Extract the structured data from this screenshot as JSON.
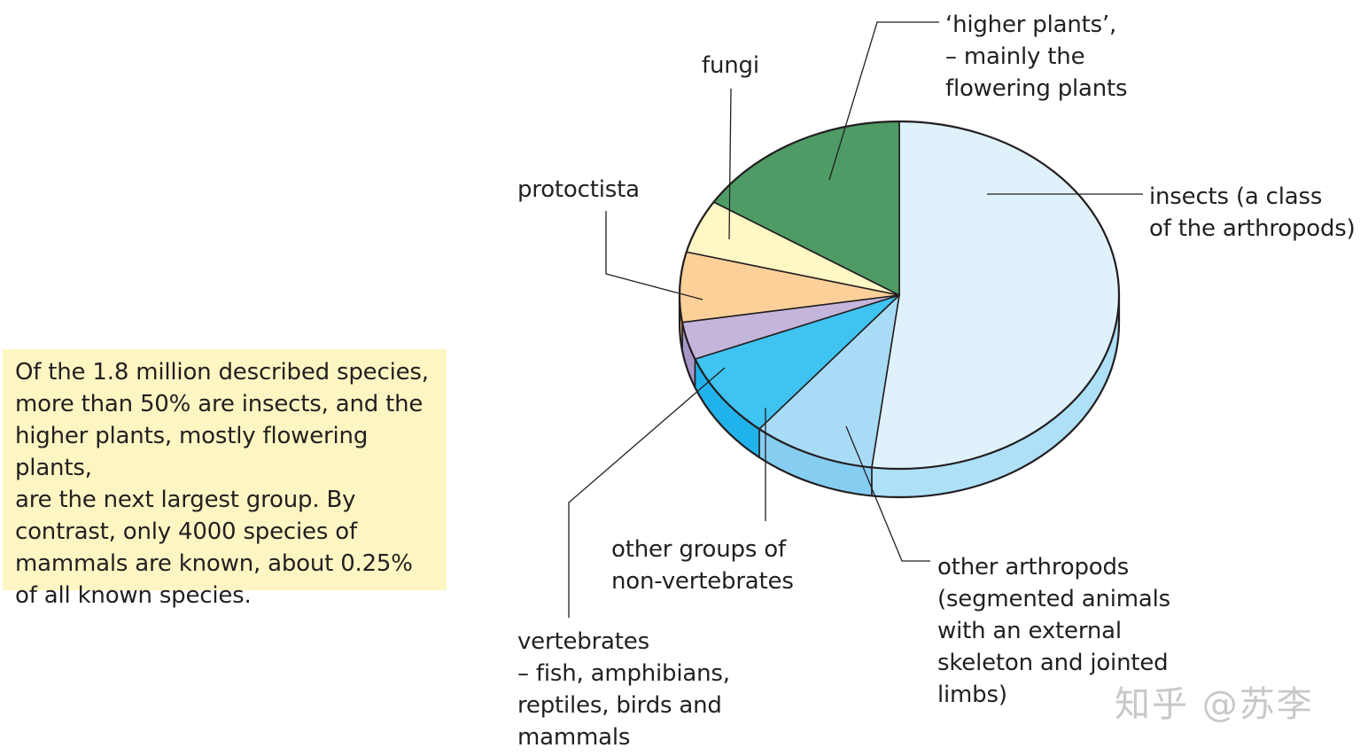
{
  "caption": {
    "lines": [
      "Of the 1.8 million described species,",
      "more than 50% are insects, and the",
      "higher plants, mostly flowering plants,",
      "are the next largest group. By",
      "contrast, only 4000 species of",
      "mammals are known, about 0.25%",
      "of all known species."
    ]
  },
  "watermark": "知乎 @苏李",
  "chart_data": {
    "type": "pie",
    "title": "",
    "slices": [
      {
        "label_lines": [
          "insects (a class",
          "of the arthropods)"
        ],
        "value": 52,
        "color": "#dff2fc",
        "side_color": "#aee0f8"
      },
      {
        "label_lines": [
          "other arthropods",
          "(segmented animals",
          "with an external",
          "skeleton and jointed",
          "limbs)"
        ],
        "value": 9,
        "color": "#a8dcf6",
        "side_color": "#86cdf2"
      },
      {
        "label_lines": [
          "other groups of",
          "non-vertebrates"
        ],
        "value": 8,
        "color": "#3fc3f1",
        "side_color": "#20b2ea"
      },
      {
        "label_lines": [
          "vertebrates",
          "– fish, amphibians,",
          "reptiles, birds and",
          "mammals"
        ],
        "value": 3.5,
        "color": "#c4b6da",
        "side_color": "#a797c8"
      },
      {
        "label_lines": [
          "protoctista"
        ],
        "value": 6.5,
        "color": "#fdd09a",
        "side_color": "#f6b878"
      },
      {
        "label_lines": [
          "fungi"
        ],
        "value": 5,
        "color": "#fff7c4",
        "side_color": "#f2e8a8"
      },
      {
        "label_lines": [
          "‘higher plants’,",
          "– mainly the",
          "flowering plants"
        ],
        "value": 16,
        "color": "#4e9b66",
        "side_color": "#3f8455"
      }
    ]
  }
}
